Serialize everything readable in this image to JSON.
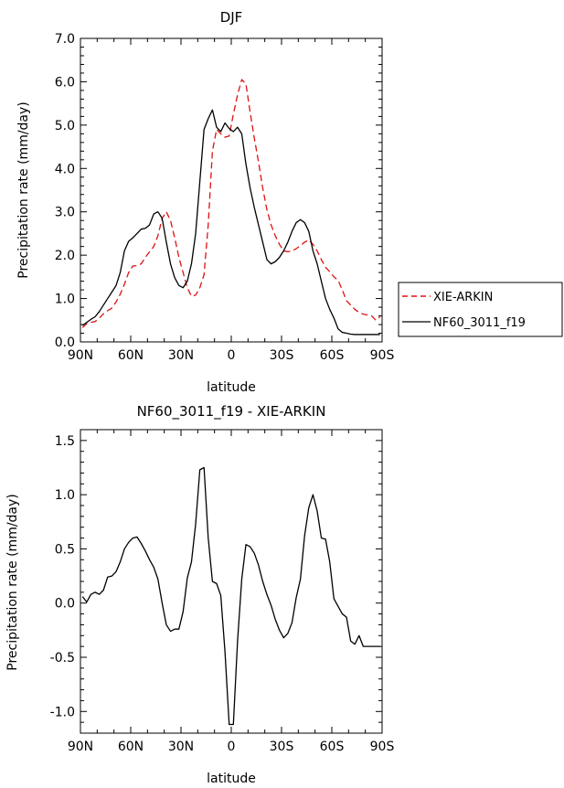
{
  "chart_data": [
    {
      "type": "line",
      "title": "DJF",
      "xlabel": "latitude",
      "ylabel": "Precipitation rate (mm/day)",
      "xlim": [
        -90,
        90
      ],
      "ylim": [
        0,
        7
      ],
      "x_ticks": [
        -90,
        -60,
        -30,
        0,
        30,
        60,
        90
      ],
      "x_tick_labels": [
        "90N",
        "60N",
        "30N",
        "0",
        "30S",
        "60S",
        "90S"
      ],
      "y_ticks": [
        0,
        1,
        2,
        3,
        4,
        5,
        6,
        7
      ],
      "y_tick_labels": [
        "0.0",
        "1.0",
        "2.0",
        "3.0",
        "4.0",
        "5.0",
        "6.0",
        "7.0"
      ],
      "legend_position": "right",
      "series": [
        {
          "name": "XIE-ARKIN",
          "color": "#dd1111",
          "dash": "dashed",
          "x": [
            -88.75,
            -86.25,
            -83.75,
            -81.25,
            -78.75,
            -76.25,
            -73.75,
            -71.25,
            -68.75,
            -66.25,
            -63.75,
            -61.25,
            -58.75,
            -56.25,
            -53.75,
            -51.25,
            -48.75,
            -46.25,
            -43.75,
            -41.25,
            -38.75,
            -36.25,
            -33.75,
            -31.25,
            -28.75,
            -26.25,
            -23.75,
            -21.25,
            -18.75,
            -16.25,
            -13.75,
            -11.25,
            -8.75,
            -6.25,
            -3.75,
            -1.25,
            1.25,
            3.75,
            6.25,
            8.75,
            11.25,
            13.75,
            16.25,
            18.75,
            21.25,
            23.75,
            26.25,
            28.75,
            31.25,
            33.75,
            36.25,
            38.75,
            41.25,
            43.75,
            46.25,
            48.75,
            51.25,
            53.75,
            56.25,
            58.75,
            61.25,
            63.75,
            66.25,
            68.75,
            71.25,
            73.75,
            76.25,
            78.75,
            81.25,
            83.75,
            86.25,
            88.75
          ],
          "values": [
            0.33,
            0.42,
            0.45,
            0.47,
            0.55,
            0.65,
            0.72,
            0.78,
            0.92,
            1.1,
            1.33,
            1.6,
            1.75,
            1.76,
            1.8,
            1.95,
            2.08,
            2.2,
            2.45,
            2.85,
            3.0,
            2.8,
            2.4,
            1.95,
            1.6,
            1.25,
            1.05,
            1.08,
            1.25,
            1.55,
            2.7,
            4.4,
            4.9,
            4.8,
            4.72,
            4.75,
            5.25,
            5.7,
            6.05,
            5.95,
            5.3,
            4.7,
            4.15,
            3.55,
            3.05,
            2.7,
            2.45,
            2.25,
            2.1,
            2.08,
            2.1,
            2.15,
            2.22,
            2.3,
            2.35,
            2.25,
            2.1,
            1.9,
            1.72,
            1.62,
            1.5,
            1.42,
            1.2,
            0.95,
            0.85,
            0.75,
            0.68,
            0.64,
            0.62,
            0.6,
            0.5,
            0.58
          ]
        },
        {
          "name": "NF60_3011_f19",
          "color": "#000000",
          "dash": "solid",
          "x": [
            -88.75,
            -86.25,
            -83.75,
            -81.25,
            -78.75,
            -76.25,
            -73.75,
            -71.25,
            -68.75,
            -66.25,
            -63.75,
            -61.25,
            -58.75,
            -56.25,
            -53.75,
            -51.25,
            -48.75,
            -46.25,
            -43.75,
            -41.25,
            -38.75,
            -36.25,
            -33.75,
            -31.25,
            -28.75,
            -26.25,
            -23.75,
            -21.25,
            -18.75,
            -16.25,
            -13.75,
            -11.25,
            -8.75,
            -6.25,
            -3.75,
            -1.25,
            1.25,
            3.75,
            6.25,
            8.75,
            11.25,
            13.75,
            16.25,
            18.75,
            21.25,
            23.75,
            26.25,
            28.75,
            31.25,
            33.75,
            36.25,
            38.75,
            41.25,
            43.75,
            46.25,
            48.75,
            51.25,
            53.75,
            56.25,
            58.75,
            61.25,
            63.75,
            66.25,
            68.75,
            71.25,
            73.75,
            76.25,
            78.75,
            81.25,
            83.75,
            86.25,
            88.75
          ],
          "values": [
            0.38,
            0.45,
            0.52,
            0.58,
            0.7,
            0.85,
            1.0,
            1.15,
            1.3,
            1.6,
            2.1,
            2.32,
            2.4,
            2.5,
            2.6,
            2.62,
            2.7,
            2.95,
            3.0,
            2.85,
            2.3,
            1.8,
            1.48,
            1.3,
            1.25,
            1.4,
            1.8,
            2.5,
            3.7,
            4.9,
            5.15,
            5.35,
            4.95,
            4.85,
            5.05,
            4.92,
            4.85,
            4.95,
            4.8,
            4.1,
            3.55,
            3.1,
            2.7,
            2.3,
            1.9,
            1.8,
            1.85,
            1.95,
            2.1,
            2.3,
            2.55,
            2.75,
            2.82,
            2.75,
            2.55,
            2.1,
            1.8,
            1.4,
            1.0,
            0.75,
            0.55,
            0.3,
            0.22,
            0.2,
            0.18,
            0.17,
            0.17,
            0.17,
            0.17,
            0.17,
            0.17,
            0.17
          ]
        }
      ]
    },
    {
      "type": "line",
      "title": "NF60_3011_f19 - XIE-ARKIN",
      "xlabel": "latitude",
      "ylabel": "Precipitation rate (mm/day)",
      "xlim": [
        -90,
        90
      ],
      "ylim": [
        -1.2,
        1.6
      ],
      "x_ticks": [
        -90,
        -60,
        -30,
        0,
        30,
        60,
        90
      ],
      "x_tick_labels": [
        "90N",
        "60N",
        "30N",
        "0",
        "30S",
        "60S",
        "90S"
      ],
      "y_ticks": [
        -1.0,
        -0.5,
        0.0,
        0.5,
        1.0,
        1.5
      ],
      "y_tick_labels": [
        "-1.0",
        "-0.5",
        "0.0",
        "0.5",
        "1.0",
        "1.5"
      ],
      "series": [
        {
          "name": "NF60_3011_f19 - XIE-ARKIN",
          "color": "#000000",
          "dash": "solid",
          "x": [
            -88.75,
            -86.25,
            -83.75,
            -81.25,
            -78.75,
            -76.25,
            -73.75,
            -71.25,
            -68.75,
            -66.25,
            -63.75,
            -61.25,
            -58.75,
            -56.25,
            -53.75,
            -51.25,
            -48.75,
            -46.25,
            -43.75,
            -41.25,
            -38.75,
            -36.25,
            -33.75,
            -31.25,
            -28.75,
            -26.25,
            -23.75,
            -21.25,
            -18.75,
            -16.25,
            -13.75,
            -11.25,
            -8.75,
            -6.25,
            -3.75,
            -1.25,
            1.25,
            3.75,
            6.25,
            8.75,
            11.25,
            13.75,
            16.25,
            18.75,
            21.25,
            23.75,
            26.25,
            28.75,
            31.25,
            33.75,
            36.25,
            38.75,
            41.25,
            43.75,
            46.25,
            48.75,
            51.25,
            53.75,
            56.25,
            58.75,
            61.25,
            63.75,
            66.25,
            68.75,
            71.25,
            73.75,
            76.25,
            78.75,
            81.25,
            83.75,
            86.25,
            88.75
          ],
          "values": [
            0.06,
            0.01,
            0.08,
            0.1,
            0.08,
            0.12,
            0.24,
            0.25,
            0.29,
            0.38,
            0.5,
            0.56,
            0.6,
            0.61,
            0.55,
            0.48,
            0.4,
            0.33,
            0.22,
            0.0,
            -0.2,
            -0.26,
            -0.24,
            -0.24,
            -0.08,
            0.23,
            0.38,
            0.73,
            1.23,
            1.25,
            0.6,
            0.2,
            0.18,
            0.07,
            -0.45,
            -1.12,
            -1.12,
            -0.35,
            0.22,
            0.54,
            0.52,
            0.46,
            0.35,
            0.2,
            0.08,
            -0.02,
            -0.15,
            -0.25,
            -0.32,
            -0.28,
            -0.18,
            0.05,
            0.22,
            0.62,
            0.88,
            1.0,
            0.85,
            0.6,
            0.59,
            0.38,
            0.04,
            -0.03,
            -0.1,
            -0.13,
            -0.35,
            -0.38,
            -0.3,
            -0.4,
            -0.4,
            -0.4,
            -0.4,
            -0.4
          ]
        }
      ]
    }
  ]
}
